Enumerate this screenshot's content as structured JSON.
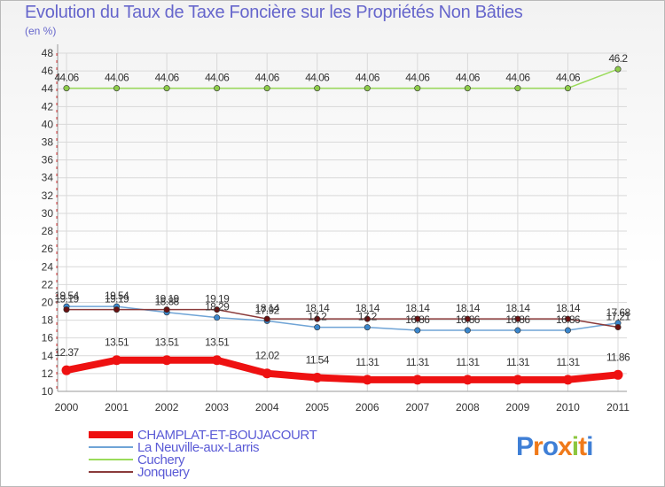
{
  "title": "Evolution du Taux de Taxe Foncière sur les Propriétés Non Bâties",
  "unit": "(en %)",
  "brand": {
    "letters": [
      "P",
      "r",
      "o",
      "x",
      "i",
      "t",
      "i"
    ],
    "colors": [
      "#3f7fd6",
      "#f07a1a",
      "#3f7fd6",
      "#f07a1a",
      "#8cc63e",
      "#f07a1a",
      "#3f7fd6"
    ]
  },
  "chart_data": {
    "type": "line",
    "title": "Evolution du Taux de Taxe Foncière sur les Propriétés Non Bâties",
    "ylabel": "(en %)",
    "xlabel": "",
    "x": [
      "2000",
      "2001",
      "2002",
      "2003",
      "2004",
      "2005",
      "2006",
      "2007",
      "2008",
      "2009",
      "2010",
      "2011"
    ],
    "yticks": [
      "10",
      "12",
      "14",
      "16",
      "18",
      "20",
      "22",
      "24",
      "26",
      "28",
      "30",
      "32",
      "34",
      "36",
      "38",
      "40",
      "42",
      "44",
      "46",
      "48"
    ],
    "ylim": [
      10,
      48
    ],
    "grid": true,
    "series": [
      {
        "name": "Cuchery",
        "color": "#9adb5a",
        "point_color": "#8ecc4a",
        "width": 1.5,
        "values": [
          44.06,
          44.06,
          44.06,
          44.06,
          44.06,
          44.06,
          44.06,
          44.06,
          44.06,
          44.06,
          44.06,
          46.2
        ],
        "labels": [
          "44.06",
          "44.06",
          "44.06",
          "44.06",
          "44.06",
          "44.06",
          "44.06",
          "44.06",
          "44.06",
          "44.06",
          "44.06",
          "46.2"
        ]
      },
      {
        "name": "La Neuville-aux-Larris",
        "color": "#6fa4d6",
        "point_color": "#3a86cc",
        "width": 1.5,
        "values": [
          19.54,
          19.54,
          18.88,
          18.29,
          17.92,
          17.2,
          17.2,
          16.86,
          16.86,
          16.86,
          16.86,
          17.68
        ],
        "labels": [
          "19.54",
          "19.54",
          "18.88",
          "18.29",
          "17.92",
          "17.2",
          "17.2",
          "16.86",
          "16.86",
          "16.86",
          "16.86",
          "17.68"
        ]
      },
      {
        "name": "Jonquery",
        "color": "#8a3a3a",
        "point_color": "#6a1010",
        "width": 1.5,
        "values": [
          19.19,
          19.19,
          19.19,
          19.19,
          18.14,
          18.14,
          18.14,
          18.14,
          18.14,
          18.14,
          18.14,
          17.21
        ],
        "labels": [
          "19.19",
          "19.19",
          "19.19",
          "19.19",
          "18.14",
          "18.14",
          "18.14",
          "18.14",
          "18.14",
          "18.14",
          "18.14",
          "17.21"
        ]
      },
      {
        "name": "CHAMPLAT-ET-BOUJACOURT",
        "color": "#ee1111",
        "point_color": "#ee1111",
        "width": 8,
        "values": [
          12.37,
          13.51,
          13.51,
          13.51,
          12.02,
          11.54,
          11.31,
          11.31,
          11.31,
          11.31,
          11.31,
          11.86
        ],
        "labels": [
          "12.37",
          "13.51",
          "13.51",
          "13.51",
          "12.02",
          "11.54",
          "11.31",
          "11.31",
          "11.31",
          "11.31",
          "11.31",
          "11.86"
        ]
      }
    ],
    "legend": [
      {
        "name": "CHAMPLAT-ET-BOUJACOURT",
        "color": "#ee1111",
        "text_color": "#5b5bd6",
        "thickness": 8
      },
      {
        "name": "La Neuville-aux-Larris",
        "color": "#6fa4d6",
        "text_color": "#5b5bd6",
        "thickness": 2
      },
      {
        "name": "Cuchery",
        "color": "#9adb5a",
        "text_color": "#5b5bd6",
        "thickness": 2
      },
      {
        "name": "Jonquery",
        "color": "#8a3a3a",
        "text_color": "#5b5bd6",
        "thickness": 2
      }
    ]
  }
}
